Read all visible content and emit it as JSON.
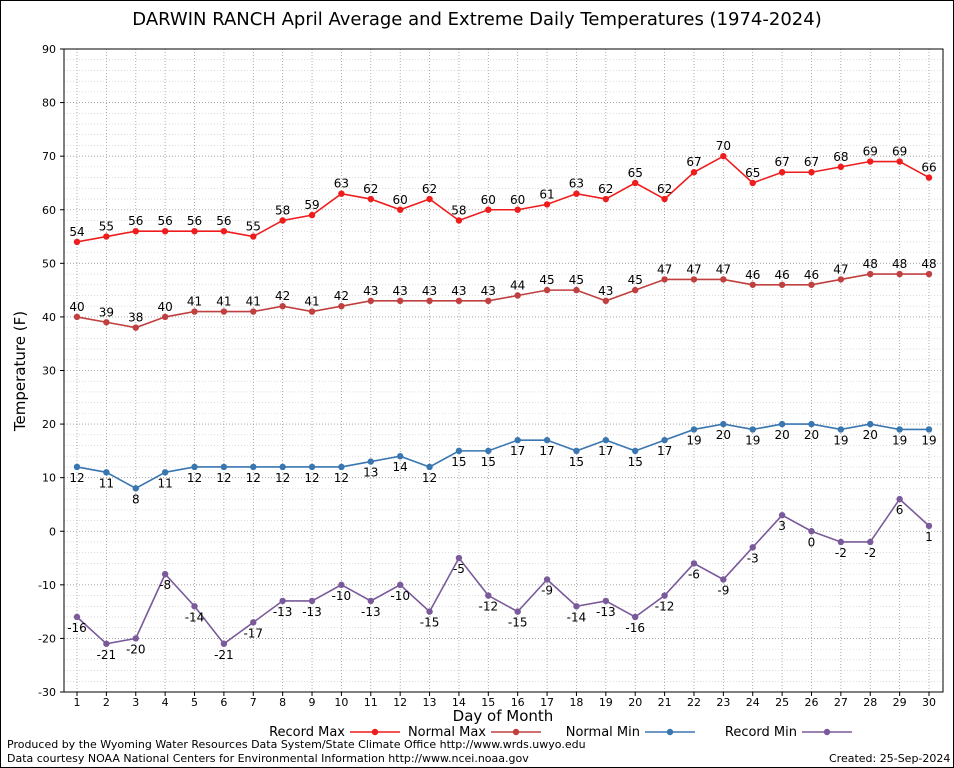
{
  "chart_data": {
    "type": "line",
    "title": "DARWIN RANCH April Average and Extreme Daily Temperatures (1974-2024)",
    "xlabel": "Day of Month",
    "ylabel": "Temperature (F)",
    "xlim": [
      1,
      30
    ],
    "ylim": [
      -30,
      90
    ],
    "y_ticks": [
      90,
      80,
      70,
      60,
      50,
      40,
      30,
      20,
      10,
      0,
      -10,
      -20,
      -30
    ],
    "x": [
      1,
      2,
      3,
      4,
      5,
      6,
      7,
      8,
      9,
      10,
      11,
      12,
      13,
      14,
      15,
      16,
      17,
      18,
      19,
      20,
      21,
      22,
      23,
      24,
      25,
      26,
      27,
      28,
      29,
      30
    ],
    "grid": true,
    "legend_position": "bottom",
    "series": [
      {
        "name": "Record Max",
        "color": "#ee1c1c",
        "label_pos": "above",
        "values": [
          54,
          55,
          56,
          56,
          56,
          56,
          55,
          58,
          59,
          63,
          62,
          60,
          62,
          58,
          60,
          60,
          61,
          63,
          62,
          65,
          62,
          67,
          70,
          65,
          67,
          67,
          68,
          69,
          69,
          66
        ]
      },
      {
        "name": "Normal Max",
        "color": "#c04040",
        "label_pos": "above",
        "values": [
          40,
          39,
          38,
          40,
          41,
          41,
          41,
          42,
          41,
          42,
          43,
          43,
          43,
          43,
          43,
          44,
          45,
          45,
          43,
          45,
          47,
          47,
          47,
          46,
          46,
          46,
          47,
          48,
          48,
          48
        ]
      },
      {
        "name": "Normal Min",
        "color": "#3a76b0",
        "label_pos": "below",
        "values": [
          12,
          11,
          8,
          11,
          12,
          12,
          12,
          12,
          12,
          12,
          13,
          14,
          12,
          15,
          15,
          17,
          17,
          15,
          17,
          15,
          17,
          19,
          20,
          19,
          20,
          20,
          19,
          20,
          19,
          19
        ]
      },
      {
        "name": "Record Min",
        "color": "#7a5a9a",
        "label_pos": "below",
        "values": [
          -16,
          -21,
          -20,
          -8,
          -14,
          -21,
          -17,
          -13,
          -13,
          -10,
          -13,
          -10,
          -15,
          -5,
          -12,
          -15,
          -9,
          -14,
          -13,
          -16,
          -12,
          -6,
          -9,
          -3,
          3,
          0,
          -2,
          -2,
          6,
          1
        ]
      }
    ]
  },
  "credits": {
    "line1": "Produced by the Wyoming Water Resources Data System/State Climate Office http://www.wrds.uwyo.edu",
    "line2": "Data courtesy NOAA National Centers for Environmental Information http://www.ncei.noaa.gov",
    "created": "Created:  25-Sep-2024"
  }
}
